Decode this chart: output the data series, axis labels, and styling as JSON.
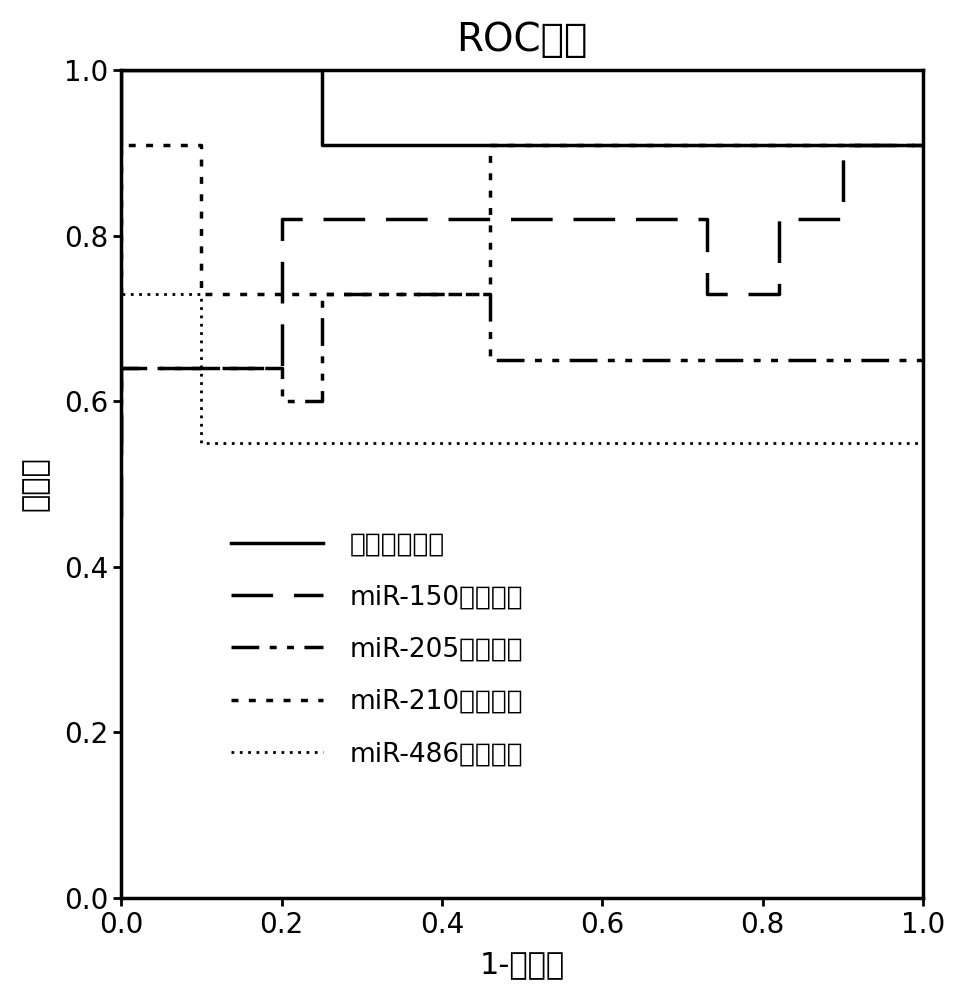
{
  "title": "ROC曲线",
  "xlabel": "1-特异性",
  "ylabel": "敏感性",
  "xlim": [
    0.0,
    1.0
  ],
  "ylim": [
    0.0,
    1.0
  ],
  "xticks": [
    0.0,
    0.2,
    0.4,
    0.6,
    0.8,
    1.0
  ],
  "yticks": [
    0.0,
    0.2,
    0.4,
    0.6,
    0.8,
    1.0
  ],
  "curves": [
    {
      "label": "联合预测概率",
      "linestyle": "solid",
      "linewidth": 2.5,
      "color": "#000000",
      "x": [
        0.0,
        0.0,
        0.25,
        0.25,
        1.0
      ],
      "y": [
        0.91,
        1.0,
        1.0,
        0.91,
        0.91
      ]
    },
    {
      "label": "miR-150预测概率",
      "linewidth": 2.5,
      "color": "#000000",
      "dashes": [
        12,
        6
      ],
      "x": [
        0.0,
        0.0,
        0.2,
        0.2,
        0.73,
        0.73,
        0.82,
        0.82,
        0.9,
        0.9,
        1.0
      ],
      "y": [
        0.46,
        0.64,
        0.64,
        0.82,
        0.82,
        0.73,
        0.73,
        0.82,
        0.82,
        0.91,
        0.91
      ]
    },
    {
      "label": "miR-205预测概率",
      "linewidth": 2.5,
      "color": "#000000",
      "dashes": [
        8,
        3,
        2,
        3,
        2,
        3
      ],
      "x": [
        0.0,
        0.0,
        0.2,
        0.2,
        0.25,
        0.25,
        0.46,
        0.46,
        1.0
      ],
      "y": [
        0.55,
        0.64,
        0.64,
        0.6,
        0.6,
        0.73,
        0.73,
        0.65,
        0.65
      ]
    },
    {
      "label": "miR-210预测概率",
      "linewidth": 2.5,
      "color": "#000000",
      "dashes": [
        2,
        3
      ],
      "x": [
        0.0,
        0.0,
        0.1,
        0.1,
        0.46,
        0.46,
        1.0
      ],
      "y": [
        0.73,
        0.91,
        0.91,
        0.73,
        0.73,
        0.91,
        0.91
      ]
    },
    {
      "label": "miR-486预测概率",
      "linewidth": 2.0,
      "color": "#000000",
      "dashes": [
        1,
        2
      ],
      "x": [
        0.0,
        0.0,
        0.1,
        0.1,
        1.0
      ],
      "y": [
        0.55,
        0.73,
        0.73,
        0.55,
        0.55
      ]
    }
  ],
  "title_fontsize": 28,
  "label_fontsize": 22,
  "tick_fontsize": 20,
  "legend_fontsize": 19
}
